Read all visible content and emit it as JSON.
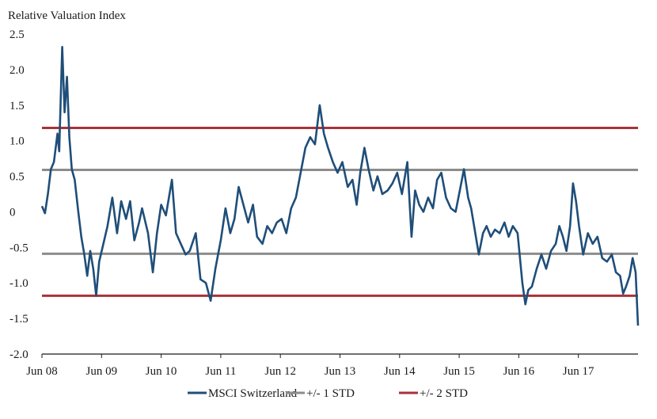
{
  "colors": {
    "series_main": "#1f4e79",
    "std1": "#8c8c8c",
    "std2": "#a8323a",
    "axis": "#1a1a1a"
  },
  "chart_data": {
    "type": "line",
    "ylabel": "Relative Valuation Index",
    "ylim": [
      -2.0,
      2.5
    ],
    "y_ticks": [
      "2.5",
      "2.0",
      "1.5",
      "1.0",
      "0.5",
      "0",
      "-0.5",
      "-1.0",
      "-1.5",
      "-2.0"
    ],
    "x_ticks": [
      "Jun 08",
      "Jun 09",
      "Jun 10",
      "Jun 11",
      "Jun 12",
      "Jun 13",
      "Jun 14",
      "Jun 15",
      "Jun 16",
      "Jun 17"
    ],
    "x_range_years": [
      2008.42,
      2018.42
    ],
    "grid": false,
    "legend": [
      "MSCI Switzerland",
      "+/- 1 STD",
      "+/- 2 STD"
    ],
    "reference_lines": [
      {
        "name": "+/- 1 STD",
        "values": [
          0.59,
          -0.59
        ]
      },
      {
        "name": "+/- 2 STD",
        "values": [
          1.18,
          -1.18
        ]
      }
    ],
    "series": [
      {
        "name": "MSCI Switzerland",
        "points": [
          [
            2008.42,
            0.08
          ],
          [
            2008.47,
            -0.02
          ],
          [
            2008.52,
            0.25
          ],
          [
            2008.57,
            0.6
          ],
          [
            2008.62,
            0.7
          ],
          [
            2008.68,
            1.1
          ],
          [
            2008.71,
            0.85
          ],
          [
            2008.76,
            2.32
          ],
          [
            2008.8,
            1.4
          ],
          [
            2008.84,
            1.9
          ],
          [
            2008.88,
            1.05
          ],
          [
            2008.92,
            0.6
          ],
          [
            2008.97,
            0.45
          ],
          [
            2009.03,
            0.0
          ],
          [
            2009.08,
            -0.35
          ],
          [
            2009.13,
            -0.6
          ],
          [
            2009.18,
            -0.9
          ],
          [
            2009.23,
            -0.55
          ],
          [
            2009.28,
            -0.8
          ],
          [
            2009.33,
            -1.18
          ],
          [
            2009.38,
            -0.7
          ],
          [
            2009.45,
            -0.45
          ],
          [
            2009.52,
            -0.2
          ],
          [
            2009.6,
            0.2
          ],
          [
            2009.68,
            -0.3
          ],
          [
            2009.75,
            0.15
          ],
          [
            2009.83,
            -0.1
          ],
          [
            2009.9,
            0.15
          ],
          [
            2009.97,
            -0.4
          ],
          [
            2010.05,
            -0.15
          ],
          [
            2010.1,
            0.05
          ],
          [
            2010.2,
            -0.3
          ],
          [
            2010.28,
            -0.85
          ],
          [
            2010.35,
            -0.3
          ],
          [
            2010.42,
            0.1
          ],
          [
            2010.5,
            -0.05
          ],
          [
            2010.6,
            0.45
          ],
          [
            2010.67,
            -0.3
          ],
          [
            2010.75,
            -0.45
          ],
          [
            2010.83,
            -0.6
          ],
          [
            2010.9,
            -0.55
          ],
          [
            2011.0,
            -0.3
          ],
          [
            2011.08,
            -0.95
          ],
          [
            2011.17,
            -1.0
          ],
          [
            2011.25,
            -1.25
          ],
          [
            2011.33,
            -0.8
          ],
          [
            2011.42,
            -0.4
          ],
          [
            2011.5,
            0.05
          ],
          [
            2011.58,
            -0.3
          ],
          [
            2011.65,
            -0.1
          ],
          [
            2011.72,
            0.35
          ],
          [
            2011.8,
            0.1
          ],
          [
            2011.88,
            -0.15
          ],
          [
            2011.96,
            0.1
          ],
          [
            2012.03,
            -0.35
          ],
          [
            2012.12,
            -0.45
          ],
          [
            2012.2,
            -0.2
          ],
          [
            2012.28,
            -0.3
          ],
          [
            2012.36,
            -0.15
          ],
          [
            2012.44,
            -0.1
          ],
          [
            2012.52,
            -0.3
          ],
          [
            2012.6,
            0.05
          ],
          [
            2012.68,
            0.2
          ],
          [
            2012.76,
            0.55
          ],
          [
            2012.84,
            0.9
          ],
          [
            2012.92,
            1.05
          ],
          [
            2013.0,
            0.95
          ],
          [
            2013.08,
            1.5
          ],
          [
            2013.15,
            1.1
          ],
          [
            2013.22,
            0.9
          ],
          [
            2013.3,
            0.7
          ],
          [
            2013.38,
            0.55
          ],
          [
            2013.46,
            0.7
          ],
          [
            2013.55,
            0.35
          ],
          [
            2013.63,
            0.45
          ],
          [
            2013.7,
            0.1
          ],
          [
            2013.76,
            0.55
          ],
          [
            2013.83,
            0.9
          ],
          [
            2013.9,
            0.6
          ],
          [
            2013.98,
            0.3
          ],
          [
            2014.05,
            0.5
          ],
          [
            2014.13,
            0.25
          ],
          [
            2014.22,
            0.3
          ],
          [
            2014.3,
            0.4
          ],
          [
            2014.38,
            0.55
          ],
          [
            2014.46,
            0.25
          ],
          [
            2014.55,
            0.7
          ],
          [
            2014.62,
            -0.35
          ],
          [
            2014.68,
            0.3
          ],
          [
            2014.75,
            0.1
          ],
          [
            2014.82,
            0.0
          ],
          [
            2014.9,
            0.2
          ],
          [
            2014.98,
            0.05
          ],
          [
            2015.05,
            0.45
          ],
          [
            2015.12,
            0.55
          ],
          [
            2015.2,
            0.2
          ],
          [
            2015.28,
            0.05
          ],
          [
            2015.36,
            0.0
          ],
          [
            2015.43,
            0.3
          ],
          [
            2015.5,
            0.6
          ],
          [
            2015.57,
            0.2
          ],
          [
            2015.62,
            0.05
          ],
          [
            2015.68,
            -0.25
          ],
          [
            2015.75,
            -0.6
          ],
          [
            2015.82,
            -0.3
          ],
          [
            2015.88,
            -0.2
          ],
          [
            2015.95,
            -0.35
          ],
          [
            2016.02,
            -0.25
          ],
          [
            2016.1,
            -0.3
          ],
          [
            2016.18,
            -0.15
          ],
          [
            2016.25,
            -0.35
          ],
          [
            2016.32,
            -0.2
          ],
          [
            2016.4,
            -0.3
          ],
          [
            2016.48,
            -1.0
          ],
          [
            2016.53,
            -1.3
          ],
          [
            2016.58,
            -1.1
          ],
          [
            2016.64,
            -1.05
          ],
          [
            2016.72,
            -0.8
          ],
          [
            2016.8,
            -0.6
          ],
          [
            2016.88,
            -0.8
          ],
          [
            2016.96,
            -0.55
          ],
          [
            2017.04,
            -0.45
          ],
          [
            2017.1,
            -0.2
          ],
          [
            2017.16,
            -0.35
          ],
          [
            2017.22,
            -0.55
          ],
          [
            2017.28,
            -0.2
          ],
          [
            2017.33,
            0.4
          ],
          [
            2017.38,
            0.15
          ],
          [
            2017.43,
            -0.2
          ],
          [
            2017.5,
            -0.6
          ],
          [
            2017.58,
            -0.3
          ],
          [
            2017.66,
            -0.45
          ],
          [
            2017.74,
            -0.35
          ],
          [
            2017.82,
            -0.65
          ],
          [
            2017.9,
            -0.7
          ],
          [
            2017.98,
            -0.6
          ],
          [
            2018.05,
            -0.85
          ],
          [
            2018.12,
            -0.9
          ],
          [
            2018.17,
            -1.15
          ],
          [
            2018.22,
            -1.05
          ],
          [
            2018.28,
            -0.9
          ],
          [
            2018.33,
            -0.65
          ],
          [
            2018.38,
            -0.85
          ],
          [
            2018.42,
            -1.6
          ]
        ]
      }
    ]
  }
}
